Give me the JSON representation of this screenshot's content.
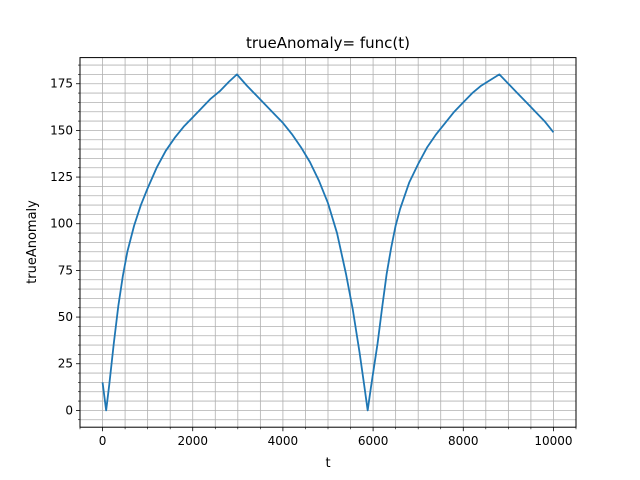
{
  "chart_data": {
    "type": "line",
    "title": "trueAnomaly= func(t)",
    "xlabel": "t",
    "ylabel": "trueAnomaly",
    "xlim": [
      -500,
      10500
    ],
    "ylim": [
      -9,
      189
    ],
    "xticks": [
      0,
      2000,
      4000,
      6000,
      8000,
      10000
    ],
    "xtick_labels": [
      "0",
      "2000",
      "4000",
      "6000",
      "8000",
      "10000"
    ],
    "yticks": [
      0,
      25,
      50,
      75,
      100,
      125,
      150,
      175
    ],
    "ytick_labels": [
      "0",
      "25",
      "50",
      "75",
      "100",
      "125",
      "150",
      "175"
    ],
    "grid": "major and minor",
    "color": "#1f77b4",
    "series": [
      {
        "x": [
          0,
          80,
          150,
          250,
          350,
          450,
          550,
          700,
          850,
          1000,
          1200,
          1400,
          1600,
          1800,
          2000,
          2200,
          2400,
          2600,
          2800,
          2980,
          3200,
          3400,
          3600,
          3800,
          4000,
          4200,
          4400,
          4600,
          4800,
          5000,
          5200,
          5400,
          5550,
          5700,
          5800,
          5880,
          5950,
          6000,
          6100,
          6200,
          6300,
          6400,
          6500,
          6600,
          6800,
          7000,
          7200,
          7400,
          7600,
          7800,
          8000,
          8200,
          8400,
          8600,
          8800,
          9000,
          9200,
          9400,
          9600,
          9800,
          10000
        ],
        "y": [
          15,
          0,
          14,
          36,
          56,
          72,
          85,
          99,
          110,
          119,
          130,
          139,
          146,
          152,
          157,
          162,
          167,
          171,
          176,
          180,
          174,
          169,
          164,
          159,
          154,
          148,
          141,
          133,
          123,
          111,
          95,
          73,
          54,
          31,
          14,
          0,
          12,
          20,
          36,
          55,
          73,
          87,
          99,
          108,
          122,
          132,
          141,
          148,
          154,
          160,
          165,
          170,
          174,
          177,
          180,
          175,
          170,
          165,
          160,
          155,
          149
        ]
      }
    ]
  }
}
